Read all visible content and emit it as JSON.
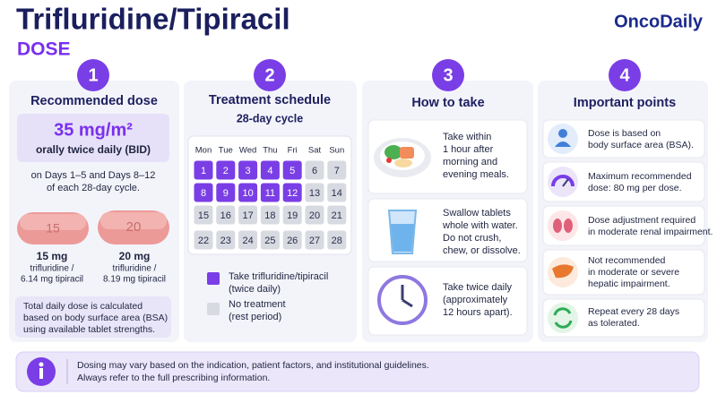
{
  "header": {
    "title": "Trifluridine/Tipiracil",
    "subtitle": "DOSE",
    "brand": "OncoDaily"
  },
  "sections": [
    {
      "number": 1,
      "title": "Recommended dose",
      "dose": {
        "amount": "35 mg/m²",
        "frequency": "orally twice daily (BID)"
      },
      "schedule_note": [
        "on Days 1–5 and Days 8–12",
        "of each 28-day cycle."
      ],
      "tablets": [
        {
          "imprint": "15",
          "strength": "15 mg",
          "lines": [
            "trifluridine /",
            "6.14 mg tipiracil"
          ]
        },
        {
          "imprint": "20",
          "strength": "20 mg",
          "lines": [
            "trifluridine /",
            "8.19 mg tipiracil"
          ]
        }
      ],
      "note": [
        "Total daily dose is calculated",
        "based on body surface area (BSA)",
        "using available tablet strengths."
      ]
    },
    {
      "number": 2,
      "title": "Treatment schedule",
      "subtitle": "28-day cycle",
      "weekdays": [
        "Mon",
        "Tue",
        "Wed",
        "Thu",
        "Fri",
        "Sat",
        "Sun"
      ],
      "weeks": [
        [
          {
            "day": 1,
            "treatment": true
          },
          {
            "day": 2,
            "treatment": true
          },
          {
            "day": 3,
            "treatment": true
          },
          {
            "day": 4,
            "treatment": true
          },
          {
            "day": 5,
            "treatment": true
          },
          {
            "day": 6,
            "treatment": false
          },
          {
            "day": 7,
            "treatment": false
          }
        ],
        [
          {
            "day": 8,
            "treatment": true
          },
          {
            "day": 9,
            "treatment": true
          },
          {
            "day": 10,
            "treatment": true
          },
          {
            "day": 11,
            "treatment": true
          },
          {
            "day": 12,
            "treatment": true
          },
          {
            "day": 13,
            "treatment": false
          },
          {
            "day": 14,
            "treatment": false
          }
        ],
        [
          {
            "day": 15,
            "treatment": false
          },
          {
            "day": 16,
            "treatment": false
          },
          {
            "day": 17,
            "treatment": false
          },
          {
            "day": 18,
            "treatment": false
          },
          {
            "day": 19,
            "treatment": false
          },
          {
            "day": 20,
            "treatment": false
          },
          {
            "day": 21,
            "treatment": false
          }
        ],
        [
          {
            "day": 22,
            "treatment": false
          },
          {
            "day": 23,
            "treatment": false
          },
          {
            "day": 24,
            "treatment": false
          },
          {
            "day": 25,
            "treatment": false
          },
          {
            "day": 26,
            "treatment": false
          },
          {
            "day": 27,
            "treatment": false
          },
          {
            "day": 28,
            "treatment": false
          }
        ]
      ],
      "legend": [
        {
          "lines": [
            "Take trifluridine/tipiracil",
            "(twice daily)"
          ],
          "color": "#7a3ee6"
        },
        {
          "lines": [
            "No treatment",
            "(rest period)"
          ],
          "color": "#d8dae2"
        }
      ]
    },
    {
      "number": 3,
      "title": "How to take",
      "items": [
        {
          "lines": [
            "Take within",
            "1 hour after",
            "morning and",
            "evening meals."
          ]
        },
        {
          "lines": [
            "Swallow tablets",
            "whole with water.",
            "Do not crush,",
            "chew, or dissolve."
          ]
        },
        {
          "lines": [
            "Take twice daily",
            "(approximately",
            "12 hours apart)."
          ]
        }
      ]
    },
    {
      "number": 4,
      "title": "Important points",
      "items": [
        {
          "lines": [
            "Dose is based on",
            "body surface area (BSA)."
          ]
        },
        {
          "lines": [
            "Maximum recommended",
            "dose: 80 mg per dose."
          ]
        },
        {
          "lines": [
            "Dose adjustment required",
            "in moderate renal impairment."
          ]
        },
        {
          "lines": [
            "Not recommended",
            "in moderate or severe",
            "hepatic impairment."
          ]
        },
        {
          "lines": [
            "Repeat every 28 days",
            "as tolerated."
          ]
        }
      ]
    }
  ],
  "footer": {
    "lines": [
      "Dosing may vary based on the indication, patient factors, and institutional guidelines.",
      "Always refer to the full prescribing information."
    ]
  }
}
